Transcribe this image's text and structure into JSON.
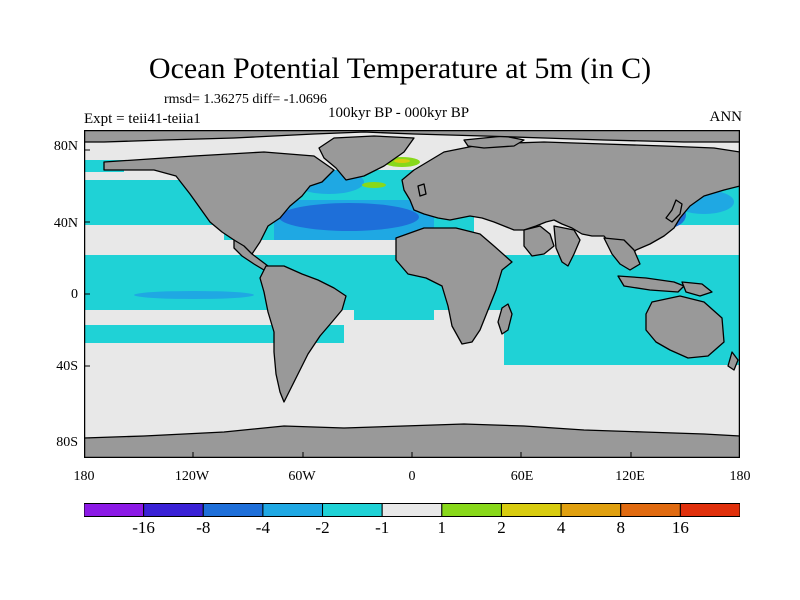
{
  "title": "Ocean Potential Temperature at 5m (in C)",
  "stats": "rmsd= 1.36275 diff= -1.0696",
  "experiment": "Expt = teii41-teiia1",
  "period": "100kyr BP - 000kyr BP",
  "season": "ANN",
  "lat_labels": [
    "80N",
    "40N",
    "0",
    "40S",
    "80S"
  ],
  "lon_labels": [
    "180",
    "120W",
    "60W",
    "0",
    "60E",
    "120E",
    "180"
  ],
  "colorbar": {
    "levels": [
      "-16",
      "-8",
      "-4",
      "-2",
      "-1",
      "1",
      "2",
      "4",
      "8",
      "16"
    ],
    "colors": [
      "#8c1ae6",
      "#3a22d6",
      "#1e6fd9",
      "#1fa8e3",
      "#1fd2d6",
      "#e8e8e8",
      "#88d81a",
      "#d8cc10",
      "#e0a010",
      "#e06a10",
      "#e0300c"
    ]
  },
  "map_colors": {
    "land": "#999999",
    "neutral": "#e8e8e8",
    "cyan": "#1fd2d6",
    "light_blue": "#1fa8e3",
    "blue": "#1e6fd9",
    "green": "#88d81a",
    "yellow": "#d8cc10"
  }
}
